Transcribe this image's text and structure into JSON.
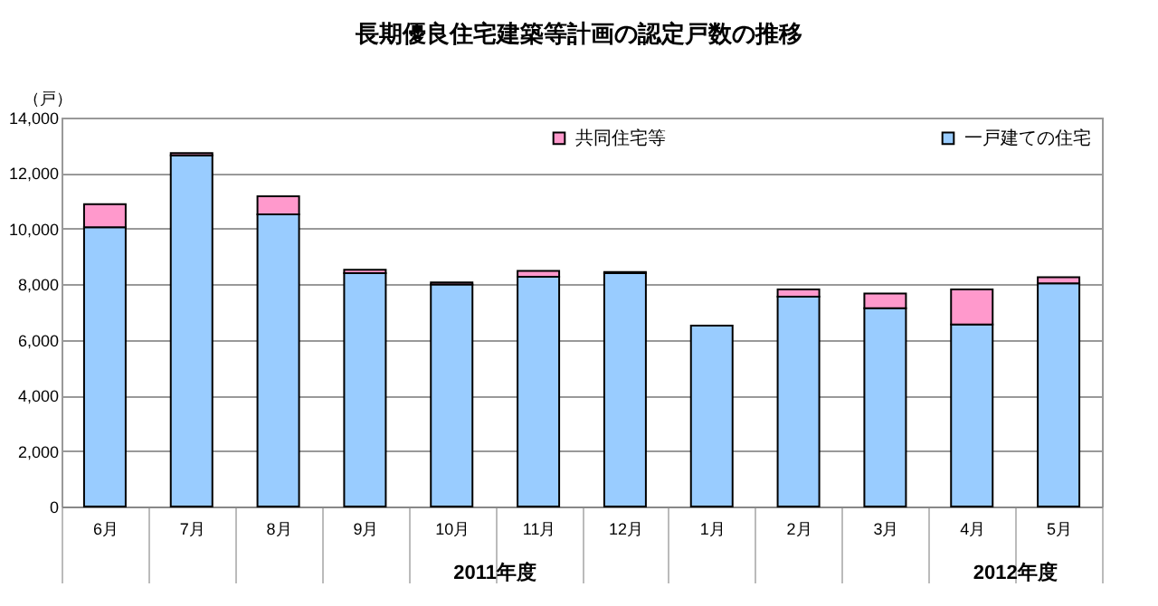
{
  "chart_data": {
    "type": "bar",
    "title": "長期優良住宅建築等計画の認定戸数の推移",
    "ylabel": "（戸）",
    "categories": [
      "6月",
      "7月",
      "8月",
      "9月",
      "10月",
      "11月",
      "12月",
      "1月",
      "2月",
      "3月",
      "4月",
      "5月"
    ],
    "stacked": true,
    "series": [
      {
        "name": "一戸建ての住宅",
        "color": "#99ccff",
        "values": [
          10050,
          12640,
          10520,
          8400,
          7990,
          8270,
          8400,
          6510,
          7550,
          7140,
          6550,
          8030
        ]
      },
      {
        "name": "共同住宅等",
        "color": "#ff99cc",
        "values": [
          830,
          80,
          650,
          120,
          80,
          210,
          40,
          null,
          260,
          530,
          1260,
          220
        ]
      }
    ],
    "ylim": [
      0,
      14000
    ],
    "yticks": [
      0,
      {
        "value": 2000,
        "label": "2,000"
      },
      {
        "value": 4000,
        "label": "4,000"
      },
      {
        "value": 6000,
        "label": "6,000"
      },
      {
        "value": 8000,
        "label": "8,000"
      },
      {
        "value": 10000,
        "label": "10,000"
      },
      {
        "value": 12000,
        "label": "12,000"
      },
      {
        "value": 14000,
        "label": "14,000"
      }
    ],
    "grid": "y",
    "legend": "top",
    "annotations": [
      "2011年度",
      "2012年度"
    ]
  }
}
